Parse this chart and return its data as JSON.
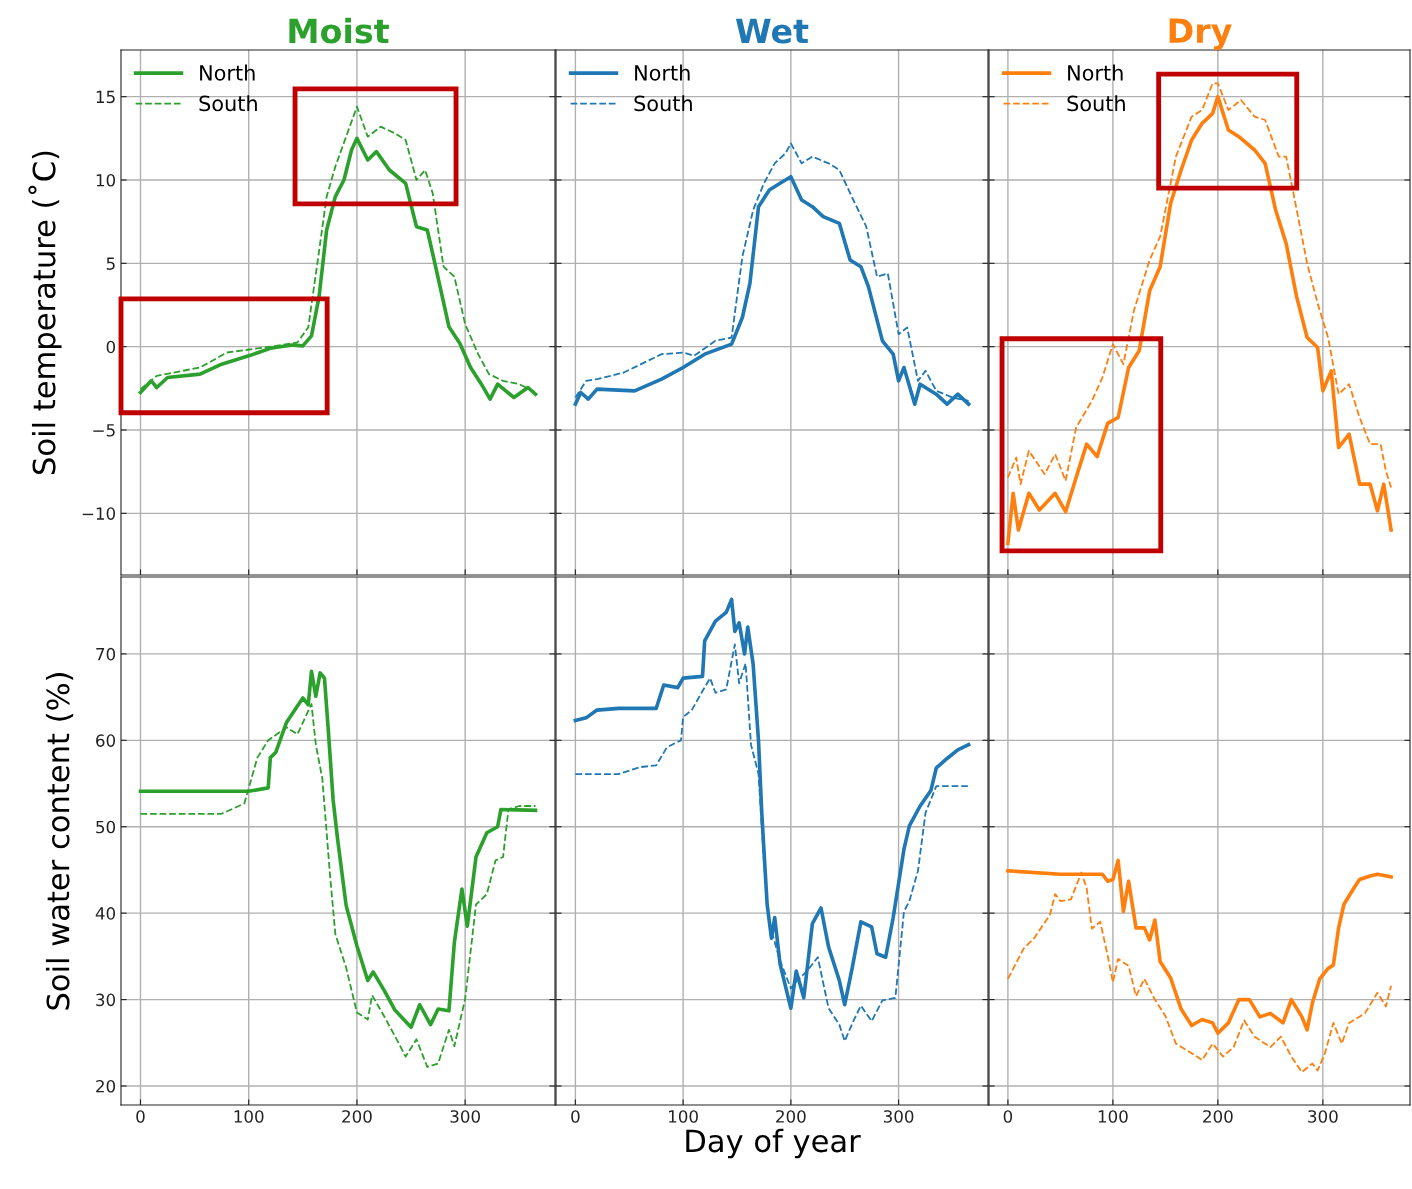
{
  "chart_data": [
    {
      "type": "line",
      "title": "Moist",
      "ylabel": "Soil temperature (˚C)",
      "xlim": [
        -18,
        383
      ],
      "xticks": [
        0,
        100,
        200,
        300
      ],
      "ylim": [
        -13.7,
        17.8
      ],
      "yticks": [
        {
          "value": -10,
          "label": "−10"
        },
        {
          "value": -5,
          "label": "−5"
        },
        0,
        5,
        10,
        15
      ],
      "grid": true,
      "legend": "top left",
      "tick_labels": "y",
      "series": [
        {
          "name": "North",
          "color": "#2ca02c",
          "line_style": "solid",
          "x": [
            0,
            10,
            15,
            25,
            55,
            75,
            100,
            120,
            140,
            150,
            158,
            165,
            172,
            180,
            188,
            195,
            200,
            210,
            218,
            230,
            245,
            255,
            265,
            272,
            285,
            295,
            305,
            315,
            323,
            330,
            345,
            358,
            365
          ],
          "values": [
            -2.75,
            -2.05,
            -2.45,
            -1.85,
            -1.65,
            -1.05,
            -0.55,
            -0.1,
            0.1,
            0.05,
            0.65,
            3.0,
            7.0,
            9.0,
            10,
            11.8,
            12.5,
            11.2,
            11.7,
            10.6,
            9.8,
            7.2,
            7.0,
            5.0,
            1.2,
            0.2,
            -1.25,
            -2.25,
            -3.15,
            -2.25,
            -3.05,
            -2.45,
            -2.85
          ]
        },
        {
          "name": "South",
          "color": "#2ca02c",
          "line_style": "dashed",
          "x": [
            0,
            15,
            55,
            80,
            120,
            145,
            155,
            163,
            172,
            180,
            190,
            200,
            210,
            222,
            235,
            245,
            255,
            263,
            270,
            280,
            290,
            300,
            312,
            322,
            335,
            350,
            365
          ],
          "values": [
            -2.55,
            -1.75,
            -1.25,
            -0.35,
            0,
            0.25,
            1.15,
            4.8,
            9.0,
            10.8,
            12.6,
            14.4,
            12.6,
            13.2,
            12.8,
            12.4,
            10.0,
            10.6,
            9.2,
            4.8,
            4.2,
            1.35,
            -0.45,
            -1.65,
            -2.05,
            -2.25,
            -2.75
          ]
        }
      ]
    },
    {
      "type": "line",
      "title": "Wet",
      "xlim": [
        -18,
        383
      ],
      "xticks": [
        0,
        100,
        200,
        300
      ],
      "ylim": [
        -13.7,
        17.8
      ],
      "yticks": [
        -10,
        -5,
        0,
        5,
        10,
        15
      ],
      "grid": true,
      "legend": "top left",
      "tick_labels": false,
      "series": [
        {
          "name": "North",
          "color": "#1f77b4",
          "line_style": "solid",
          "x": [
            0,
            5,
            12,
            20,
            55,
            80,
            100,
            120,
            145,
            155,
            162,
            170,
            180,
            190,
            200,
            210,
            220,
            230,
            245,
            255,
            265,
            272,
            285,
            295,
            300,
            305,
            315,
            320,
            335,
            345,
            355,
            365
          ],
          "values": [
            -3.45,
            -2.75,
            -3.15,
            -2.55,
            -2.65,
            -1.95,
            -1.25,
            -0.45,
            0.15,
            1.75,
            3.8,
            8.4,
            9.4,
            9.8,
            10.2,
            8.8,
            8.4,
            7.8,
            7.4,
            5.2,
            4.8,
            3.6,
            0.35,
            -0.45,
            -2.05,
            -1.25,
            -3.45,
            -2.25,
            -2.85,
            -3.45,
            -2.85,
            -3.45
          ]
        },
        {
          "name": "South",
          "color": "#1f77b4",
          "line_style": "dashed",
          "x": [
            0,
            10,
            20,
            45,
            80,
            100,
            110,
            130,
            145,
            155,
            165,
            175,
            185,
            195,
            200,
            210,
            220,
            235,
            245,
            258,
            270,
            280,
            290,
            300,
            308,
            318,
            325,
            335,
            350,
            365
          ],
          "values": [
            -3.05,
            -2.05,
            -1.95,
            -1.55,
            -0.45,
            -0.35,
            -0.55,
            0.35,
            0.55,
            5.4,
            8.2,
            9.8,
            11.0,
            11.6,
            12.2,
            11.0,
            11.4,
            11.0,
            10.6,
            8.8,
            7.2,
            4.2,
            4.4,
            0.75,
            1.15,
            -2.05,
            -1.45,
            -2.65,
            -3.05,
            -3.25
          ]
        }
      ]
    },
    {
      "type": "line",
      "title": "Dry",
      "xlim": [
        -18,
        383
      ],
      "xticks": [
        0,
        100,
        200,
        300
      ],
      "ylim": [
        -13.7,
        17.8
      ],
      "yticks": [
        -10,
        -5,
        0,
        5,
        10,
        15
      ],
      "grid": true,
      "legend": "top left",
      "tick_labels": false,
      "series": [
        {
          "name": "North",
          "color": "#ff7f0e",
          "line_style": "solid",
          "x": [
            0,
            5,
            10,
            20,
            30,
            45,
            55,
            65,
            75,
            85,
            95,
            105,
            115,
            125,
            135,
            145,
            155,
            165,
            175,
            185,
            195,
            200,
            210,
            220,
            235,
            245,
            255,
            265,
            275,
            285,
            295,
            300,
            308,
            315,
            325,
            335,
            345,
            352,
            358,
            365
          ],
          "values": [
            -11.8,
            -8.8,
            -11.0,
            -8.8,
            -9.8,
            -8.8,
            -9.9,
            -7.85,
            -5.85,
            -6.6,
            -4.6,
            -4.25,
            -1.25,
            -0.25,
            3.35,
            4.8,
            8.6,
            10.6,
            12.4,
            13.4,
            14.0,
            15.0,
            13.0,
            12.6,
            11.8,
            11.0,
            8.2,
            6.2,
            3.0,
            0.55,
            -0.05,
            -2.65,
            -1.45,
            -6.05,
            -5.25,
            -8.25,
            -8.25,
            -9.85,
            -8.25,
            -11.0
          ]
        },
        {
          "name": "South",
          "color": "#ff7f0e",
          "line_style": "dashed",
          "x": [
            0,
            8,
            12,
            20,
            35,
            45,
            55,
            65,
            80,
            90,
            100,
            110,
            120,
            135,
            145,
            160,
            175,
            185,
            195,
            200,
            210,
            222,
            235,
            245,
            258,
            265,
            272,
            285,
            295,
            305,
            315,
            325,
            335,
            345,
            355,
            360,
            365
          ],
          "values": [
            -7.85,
            -6.65,
            -8.25,
            -6.25,
            -7.65,
            -6.45,
            -8.05,
            -4.85,
            -3.25,
            -1.85,
            0.15,
            -1.05,
            2.15,
            5.2,
            6.6,
            11.4,
            13.8,
            14.2,
            15.8,
            15.8,
            14.2,
            14.8,
            13.8,
            13.6,
            11.4,
            11.4,
            9.2,
            5.0,
            2.6,
            0.55,
            -2.85,
            -2.25,
            -4.25,
            -5.85,
            -5.85,
            -7.45,
            -8.45
          ]
        }
      ]
    },
    {
      "type": "line",
      "ylabel": "Soil water content (%)",
      "xlim": [
        -18,
        383
      ],
      "xticks": [
        0,
        100,
        200,
        300
      ],
      "ylim": [
        17.8,
        78.9
      ],
      "yticks": [
        20,
        30,
        40,
        50,
        60,
        70
      ],
      "grid": true,
      "series": [
        {
          "color": "#2ca02c",
          "line_style": "solid",
          "x": [
            0,
            100,
            118,
            120,
            125,
            135,
            150,
            155,
            158,
            162,
            166,
            170,
            173,
            178,
            182,
            190,
            200,
            210,
            215,
            225,
            235,
            250,
            258,
            268,
            275,
            285,
            290,
            297,
            302,
            310,
            320,
            330,
            333,
            365
          ],
          "values": [
            54.1,
            54.1,
            54.5,
            58.0,
            58.6,
            62.1,
            64.9,
            64.1,
            68.0,
            65.1,
            67.8,
            67.2,
            62.1,
            53.1,
            48.7,
            40.9,
            36.2,
            32.2,
            33.2,
            31.1,
            28.8,
            26.8,
            29.4,
            27.1,
            28.9,
            28.7,
            36.6,
            42.8,
            38.5,
            46.5,
            49.3,
            50.0,
            52.0,
            51.9
          ]
        },
        {
          "color": "#2ca02c",
          "line_style": "dashed",
          "x": [
            0,
            75,
            96,
            108,
            118,
            135,
            145,
            158,
            162,
            168,
            175,
            180,
            190,
            200,
            210,
            214,
            225,
            235,
            245,
            255,
            265,
            275,
            285,
            290,
            300,
            310,
            320,
            328,
            335,
            340,
            350,
            365
          ],
          "values": [
            51.5,
            51.5,
            52.7,
            58.0,
            60.0,
            61.5,
            60.7,
            64.2,
            59.5,
            55.6,
            44.6,
            37.6,
            33.7,
            28.5,
            27.7,
            30.5,
            28.1,
            25.8,
            23.4,
            25.4,
            22.2,
            22.6,
            26.5,
            24.6,
            30.1,
            41.0,
            42.2,
            46.1,
            46.5,
            52.0,
            52.4,
            52.4
          ]
        }
      ]
    },
    {
      "type": "line",
      "xlabel": "Day of year",
      "xlim": [
        -18,
        383
      ],
      "xticks": [
        0,
        100,
        200,
        300
      ],
      "ylim": [
        17.8,
        78.9
      ],
      "yticks": [
        20,
        30,
        40,
        50,
        60,
        70
      ],
      "grid": true,
      "tick_labels": "x",
      "series": [
        {
          "color": "#1f77b4",
          "line_style": "solid",
          "x": [
            0,
            10,
            20,
            40,
            75,
            82,
            95,
            100,
            118,
            120,
            130,
            140,
            145,
            148,
            152,
            157,
            160,
            165,
            170,
            173,
            178,
            182,
            185,
            190,
            200,
            205,
            212,
            220,
            228,
            235,
            245,
            250,
            257,
            265,
            275,
            280,
            288,
            295,
            305,
            310,
            320,
            330,
            335,
            345,
            355,
            365
          ],
          "values": [
            62.3,
            62.6,
            63.5,
            63.7,
            63.7,
            66.4,
            66.1,
            67.2,
            67.4,
            71.5,
            73.8,
            74.8,
            76.3,
            72.6,
            73.6,
            70.0,
            73.1,
            68.8,
            59.9,
            51.6,
            41.0,
            37.1,
            39.5,
            34.1,
            29.0,
            33.3,
            30.2,
            38.8,
            40.6,
            36.1,
            32.2,
            29.4,
            33.7,
            39.0,
            38.4,
            35.3,
            34.9,
            39.5,
            47.4,
            50.1,
            52.4,
            54.2,
            56.8,
            57.9,
            58.9,
            59.5
          ]
        },
        {
          "color": "#1f77b4",
          "line_style": "dashed",
          "x": [
            0,
            40,
            60,
            75,
            85,
            98,
            100,
            108,
            118,
            125,
            130,
            140,
            148,
            152,
            158,
            163,
            170,
            175,
            180,
            190,
            200,
            205,
            215,
            225,
            235,
            245,
            250,
            258,
            265,
            275,
            285,
            297,
            305,
            310,
            318,
            325,
            335,
            365
          ],
          "values": [
            56.1,
            56.1,
            56.9,
            57.1,
            59.2,
            60.0,
            62.7,
            63.5,
            65.7,
            67.2,
            65.5,
            65.9,
            71.1,
            66.6,
            68.9,
            59.5,
            56.1,
            45.9,
            38.8,
            34.5,
            31.3,
            32.1,
            33.3,
            34.9,
            29.0,
            27.1,
            25.2,
            27.5,
            29.3,
            27.5,
            29.9,
            30.2,
            40.2,
            41.4,
            44.9,
            51.6,
            54.7,
            54.7
          ]
        }
      ]
    },
    {
      "type": "line",
      "xlim": [
        -18,
        383
      ],
      "xticks": [
        0,
        100,
        200,
        300
      ],
      "ylim": [
        17.8,
        78.9
      ],
      "yticks": [
        20,
        30,
        40,
        50,
        60,
        70
      ],
      "grid": true,
      "tick_labels": "x",
      "series": [
        {
          "color": "#ff7f0e",
          "line_style": "solid",
          "x": [
            0,
            50,
            90,
            95,
            100,
            105,
            110,
            115,
            122,
            130,
            135,
            140,
            145,
            155,
            165,
            175,
            185,
            195,
            200,
            210,
            220,
            230,
            240,
            250,
            262,
            270,
            280,
            285,
            290,
            297,
            305,
            310,
            315,
            320,
            330,
            335,
            345,
            352,
            365
          ],
          "values": [
            44.9,
            44.5,
            44.5,
            43.7,
            43.9,
            46.1,
            40.2,
            43.7,
            38.3,
            38.3,
            36.9,
            39.2,
            34.4,
            32.5,
            28.9,
            27.0,
            27.7,
            27.3,
            26.1,
            27.3,
            30.0,
            30.0,
            28.0,
            28.4,
            27.3,
            30.0,
            28.0,
            26.5,
            29.6,
            32.4,
            33.6,
            34.0,
            38.3,
            41.0,
            43.0,
            43.9,
            44.3,
            44.5,
            44.2
          ]
        },
        {
          "color": "#ff7f0e",
          "line_style": "dashed",
          "x": [
            0,
            15,
            25,
            40,
            45,
            50,
            60,
            70,
            75,
            80,
            88,
            95,
            100,
            105,
            115,
            122,
            130,
            140,
            150,
            160,
            175,
            185,
            195,
            205,
            215,
            225,
            235,
            250,
            260,
            270,
            280,
            290,
            295,
            302,
            310,
            318,
            325,
            340,
            352,
            360,
            365
          ],
          "values": [
            32.4,
            35.9,
            37.1,
            39.8,
            42.2,
            41.4,
            41.6,
            44.7,
            42.9,
            38.2,
            39.0,
            35.1,
            32.0,
            34.7,
            33.9,
            30.4,
            32.4,
            30.0,
            28.1,
            24.9,
            23.8,
            23.0,
            24.9,
            23.4,
            24.5,
            27.6,
            25.7,
            24.5,
            25.7,
            23.4,
            21.6,
            22.6,
            21.8,
            23.8,
            27.3,
            24.9,
            27.3,
            28.4,
            30.8,
            29.2,
            31.6
          ]
        }
      ]
    }
  ]
}
